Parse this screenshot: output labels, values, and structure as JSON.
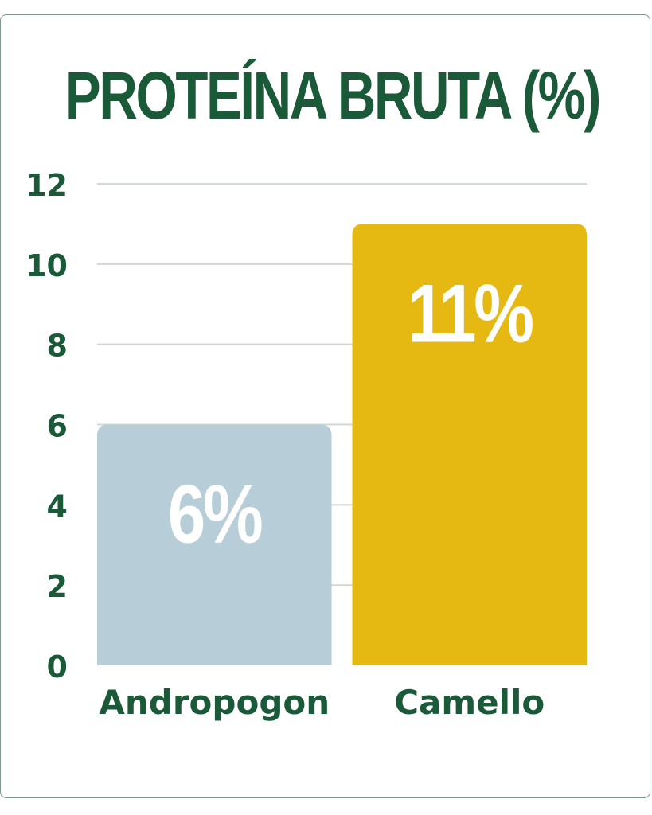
{
  "chart_data": {
    "type": "bar",
    "title": "PROTEÍNA BRUTA (%)",
    "xlabel": "",
    "ylabel": "",
    "categories": [
      "Andropogon",
      "Camello"
    ],
    "values": [
      6,
      11
    ],
    "value_labels": [
      "6%",
      "11%"
    ],
    "ylim": [
      0,
      12
    ],
    "yticks": [
      0,
      2,
      4,
      6,
      8,
      10,
      12
    ],
    "ytick_labels": [
      "0",
      "2",
      "4",
      "6",
      "8",
      "10",
      "12"
    ],
    "grid": true,
    "legend": "none",
    "colors": {
      "title": "#1b5a38",
      "axis_text": "#1b5a38",
      "grid": "#d2d8d4",
      "bars": [
        "#b7cdd7",
        "#e5b912"
      ],
      "value_label": "#ffffff",
      "border": "#7f9a8a"
    }
  }
}
